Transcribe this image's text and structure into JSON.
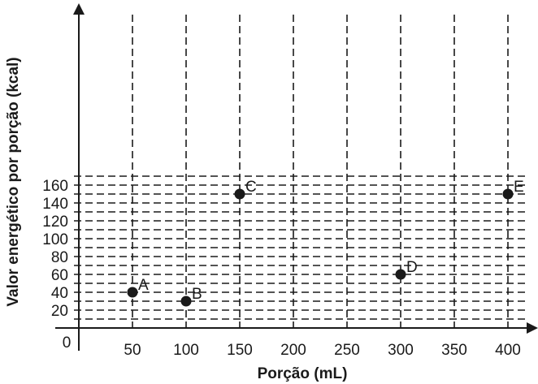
{
  "chart_data": {
    "type": "scatter",
    "title": "",
    "xlabel": "Porção (mL)",
    "ylabel": "Valor energético por porção (kcal)",
    "xlim": [
      0,
      400
    ],
    "ylim": [
      0,
      160
    ],
    "x_ticks": [
      50,
      100,
      150,
      200,
      250,
      300,
      350,
      400
    ],
    "y_ticks": [
      20,
      40,
      60,
      80,
      100,
      120,
      140,
      160
    ],
    "origin_label": "0",
    "grid": true,
    "grid_style": "dashed",
    "point_color": "#1a1a1a",
    "points": [
      {
        "label": "A",
        "x": 50,
        "y": 40
      },
      {
        "label": "B",
        "x": 100,
        "y": 30
      },
      {
        "label": "C",
        "x": 150,
        "y": 150
      },
      {
        "label": "D",
        "x": 300,
        "y": 60
      },
      {
        "label": "E",
        "x": 400,
        "y": 150
      }
    ]
  }
}
